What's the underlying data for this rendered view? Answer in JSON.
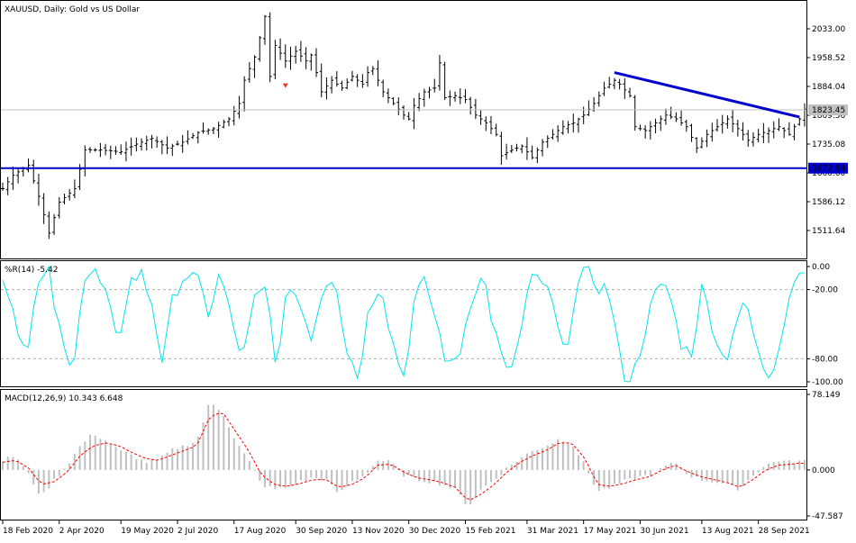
{
  "main": {
    "label": "XAUUSD, Daily:  Gold vs US Dollar",
    "price_ticks": [
      "2033.00",
      "1958.52",
      "1884.04",
      "1809.56",
      "1735.08",
      "1660.60",
      "1586.12",
      "1511.64"
    ],
    "current_price": "1823.45",
    "support_label": "1672.84",
    "colors": {
      "bars": "#000000",
      "support": "#0000cd",
      "trendline": "#0000cd",
      "last_price": "#c0c0c0",
      "arrow": "#e04010"
    }
  },
  "wpr": {
    "label": "%R(14) -5.42",
    "ticks": [
      "0.00",
      "-20.00",
      "-80.00",
      "-100.00"
    ],
    "color": "#00e5ee"
  },
  "macd": {
    "label": "MACD(12,26,9) 10.343 6.648",
    "ticks": [
      "78.149",
      "0.000",
      "-47.587"
    ],
    "colors": {
      "histogram": "#c0c0c0",
      "signal": "#ff0000"
    }
  },
  "xaxis": {
    "dates": [
      "18 Feb 2020",
      "2 Apr 2020",
      "19 May 2020",
      "2 Jul 2020",
      "17 Aug 2020",
      "30 Sep 2020",
      "13 Nov 2020",
      "30 Dec 2020",
      "15 Feb 2021",
      "31 Mar 2021",
      "17 May 2021",
      "30 Jun 2021",
      "13 Aug 2021",
      "28 Sep 2021"
    ]
  },
  "chart_data": [
    {
      "type": "ohlc",
      "title": "XAUUSD, Daily:  Gold vs US Dollar",
      "x_dates": [
        "18 Feb 2020",
        "2 Apr 2020",
        "19 May 2020",
        "2 Jul 2020",
        "17 Aug 2020",
        "30 Sep 2020",
        "13 Nov 2020",
        "30 Dec 2020",
        "15 Feb 2021",
        "31 Mar 2021",
        "17 May 2021",
        "30 Jun 2021",
        "13 Aug 2021",
        "28 Sep 2021"
      ],
      "close_at_dates": [
        1600,
        1625,
        1730,
        1775,
        1990,
        1890,
        1880,
        1895,
        1790,
        1710,
        1870,
        1760,
        1770,
        1740
      ],
      "approx_close_path": [
        [
          0,
          1620
        ],
        [
          2,
          1655
        ],
        [
          5,
          1680
        ],
        [
          7,
          1600
        ],
        [
          9,
          1505
        ],
        [
          11,
          1585
        ],
        [
          14,
          1620
        ],
        [
          16,
          1720
        ],
        [
          19,
          1720
        ],
        [
          23,
          1715
        ],
        [
          26,
          1735
        ],
        [
          29,
          1750
        ],
        [
          32,
          1725
        ],
        [
          35,
          1740
        ],
        [
          38,
          1765
        ],
        [
          41,
          1775
        ],
        [
          44,
          1800
        ],
        [
          46,
          1840
        ],
        [
          47,
          1900
        ],
        [
          49,
          1960
        ],
        [
          50,
          2010
        ],
        [
          51,
          2065
        ],
        [
          52,
          1910
        ],
        [
          53,
          1990
        ],
        [
          55,
          1950
        ],
        [
          57,
          1975
        ],
        [
          59,
          1950
        ],
        [
          60,
          1965
        ],
        [
          61,
          1920
        ],
        [
          62,
          1870
        ],
        [
          64,
          1900
        ],
        [
          66,
          1880
        ],
        [
          68,
          1910
        ],
        [
          70,
          1890
        ],
        [
          71,
          1920
        ],
        [
          72,
          1930
        ],
        [
          74,
          1870
        ],
        [
          76,
          1840
        ],
        [
          78,
          1810
        ],
        [
          79,
          1800
        ],
        [
          80,
          1835
        ],
        [
          82,
          1870
        ],
        [
          84,
          1880
        ],
        [
          85,
          1945
        ],
        [
          86,
          1855
        ],
        [
          88,
          1860
        ],
        [
          90,
          1850
        ],
        [
          92,
          1810
        ],
        [
          94,
          1790
        ],
        [
          96,
          1760
        ],
        [
          97,
          1705
        ],
        [
          99,
          1720
        ],
        [
          101,
          1730
        ],
        [
          103,
          1700
        ],
        [
          105,
          1740
        ],
        [
          107,
          1760
        ],
        [
          109,
          1780
        ],
        [
          111,
          1790
        ],
        [
          113,
          1810
        ],
        [
          115,
          1840
        ],
        [
          117,
          1880
        ],
        [
          119,
          1900
        ],
        [
          120,
          1890
        ],
        [
          122,
          1860
        ],
        [
          123,
          1780
        ],
        [
          125,
          1770
        ],
        [
          127,
          1790
        ],
        [
          129,
          1810
        ],
        [
          131,
          1800
        ],
        [
          133,
          1780
        ],
        [
          135,
          1725
        ],
        [
          137,
          1760
        ],
        [
          139,
          1780
        ],
        [
          141,
          1800
        ],
        [
          143,
          1775
        ],
        [
          145,
          1745
        ],
        [
          147,
          1760
        ],
        [
          149,
          1770
        ],
        [
          151,
          1780
        ],
        [
          153,
          1760
        ],
        [
          155,
          1800
        ],
        [
          156,
          1825
        ]
      ],
      "price_axis_ticks": [
        2033.0,
        1958.52,
        1884.04,
        1809.56,
        1735.08,
        1660.6,
        1586.12,
        1511.64
      ],
      "current_price": 1823.45,
      "support_level": 1672.84,
      "trendline": {
        "from": [
          "17 May 2021",
          1920
        ],
        "to": [
          "28 Sep 2021",
          1805
        ]
      }
    },
    {
      "type": "line",
      "title": "%R(14)",
      "last_value": -5.42,
      "ylim": [
        -100,
        0
      ],
      "levels": [
        -20,
        -80
      ],
      "approx_values": [
        -5,
        -40,
        -75,
        -20,
        -5,
        -60,
        -95,
        -10,
        -5,
        -25,
        -70,
        -15,
        -5,
        -30,
        -85,
        -20,
        -5,
        -15,
        -40,
        -5,
        -50,
        -80,
        -30,
        -20,
        -90,
        -10,
        -35,
        -60,
        -15,
        -5,
        -70,
        -95,
        -35,
        -10,
        -65,
        -95,
        -25,
        -15,
        -55,
        -90,
        -70,
        -20,
        -10,
        -60,
        -95,
        -70,
        -15,
        -10,
        -35,
        -80,
        -20,
        -5,
        -15,
        -25,
        -90,
        -98,
        -55,
        -25,
        -15,
        -60,
        -80,
        -20,
        -50,
        -85,
        -45,
        -35,
        -80,
        -95,
        -55,
        -10,
        -5
      ]
    },
    {
      "type": "histogram+line",
      "title": "MACD(12,26,9)",
      "macd_last": 10.343,
      "signal_last": 6.648,
      "ylim": [
        -47.587,
        78.149
      ],
      "approx_macd": [
        10,
        15,
        -5,
        -28,
        -10,
        5,
        25,
        38,
        30,
        20,
        15,
        8,
        10,
        20,
        25,
        30,
        70,
        60,
        30,
        10,
        -15,
        -20,
        -18,
        -12,
        -8,
        -10,
        -25,
        -12,
        -5,
        10,
        8,
        -5,
        -10,
        -12,
        -15,
        -20,
        -38,
        -20,
        -10,
        2,
        12,
        20,
        25,
        32,
        28,
        5,
        -22,
        -18,
        -12,
        -8,
        -5,
        2,
        8,
        -5,
        -10,
        -12,
        -15,
        -20,
        -5,
        5,
        10,
        8,
        10
      ],
      "approx_signal": [
        8,
        10,
        2,
        -15,
        -12,
        -2,
        15,
        25,
        28,
        25,
        18,
        12,
        10,
        15,
        20,
        25,
        55,
        60,
        40,
        20,
        -5,
        -15,
        -17,
        -14,
        -10,
        -10,
        -18,
        -15,
        -8,
        5,
        6,
        -2,
        -8,
        -10,
        -13,
        -18,
        -32,
        -25,
        -15,
        -2,
        8,
        15,
        20,
        28,
        28,
        12,
        -15,
        -17,
        -14,
        -10,
        -7,
        0,
        5,
        -2,
        -7,
        -10,
        -13,
        -18,
        -10,
        0,
        5,
        6,
        8
      ]
    }
  ]
}
